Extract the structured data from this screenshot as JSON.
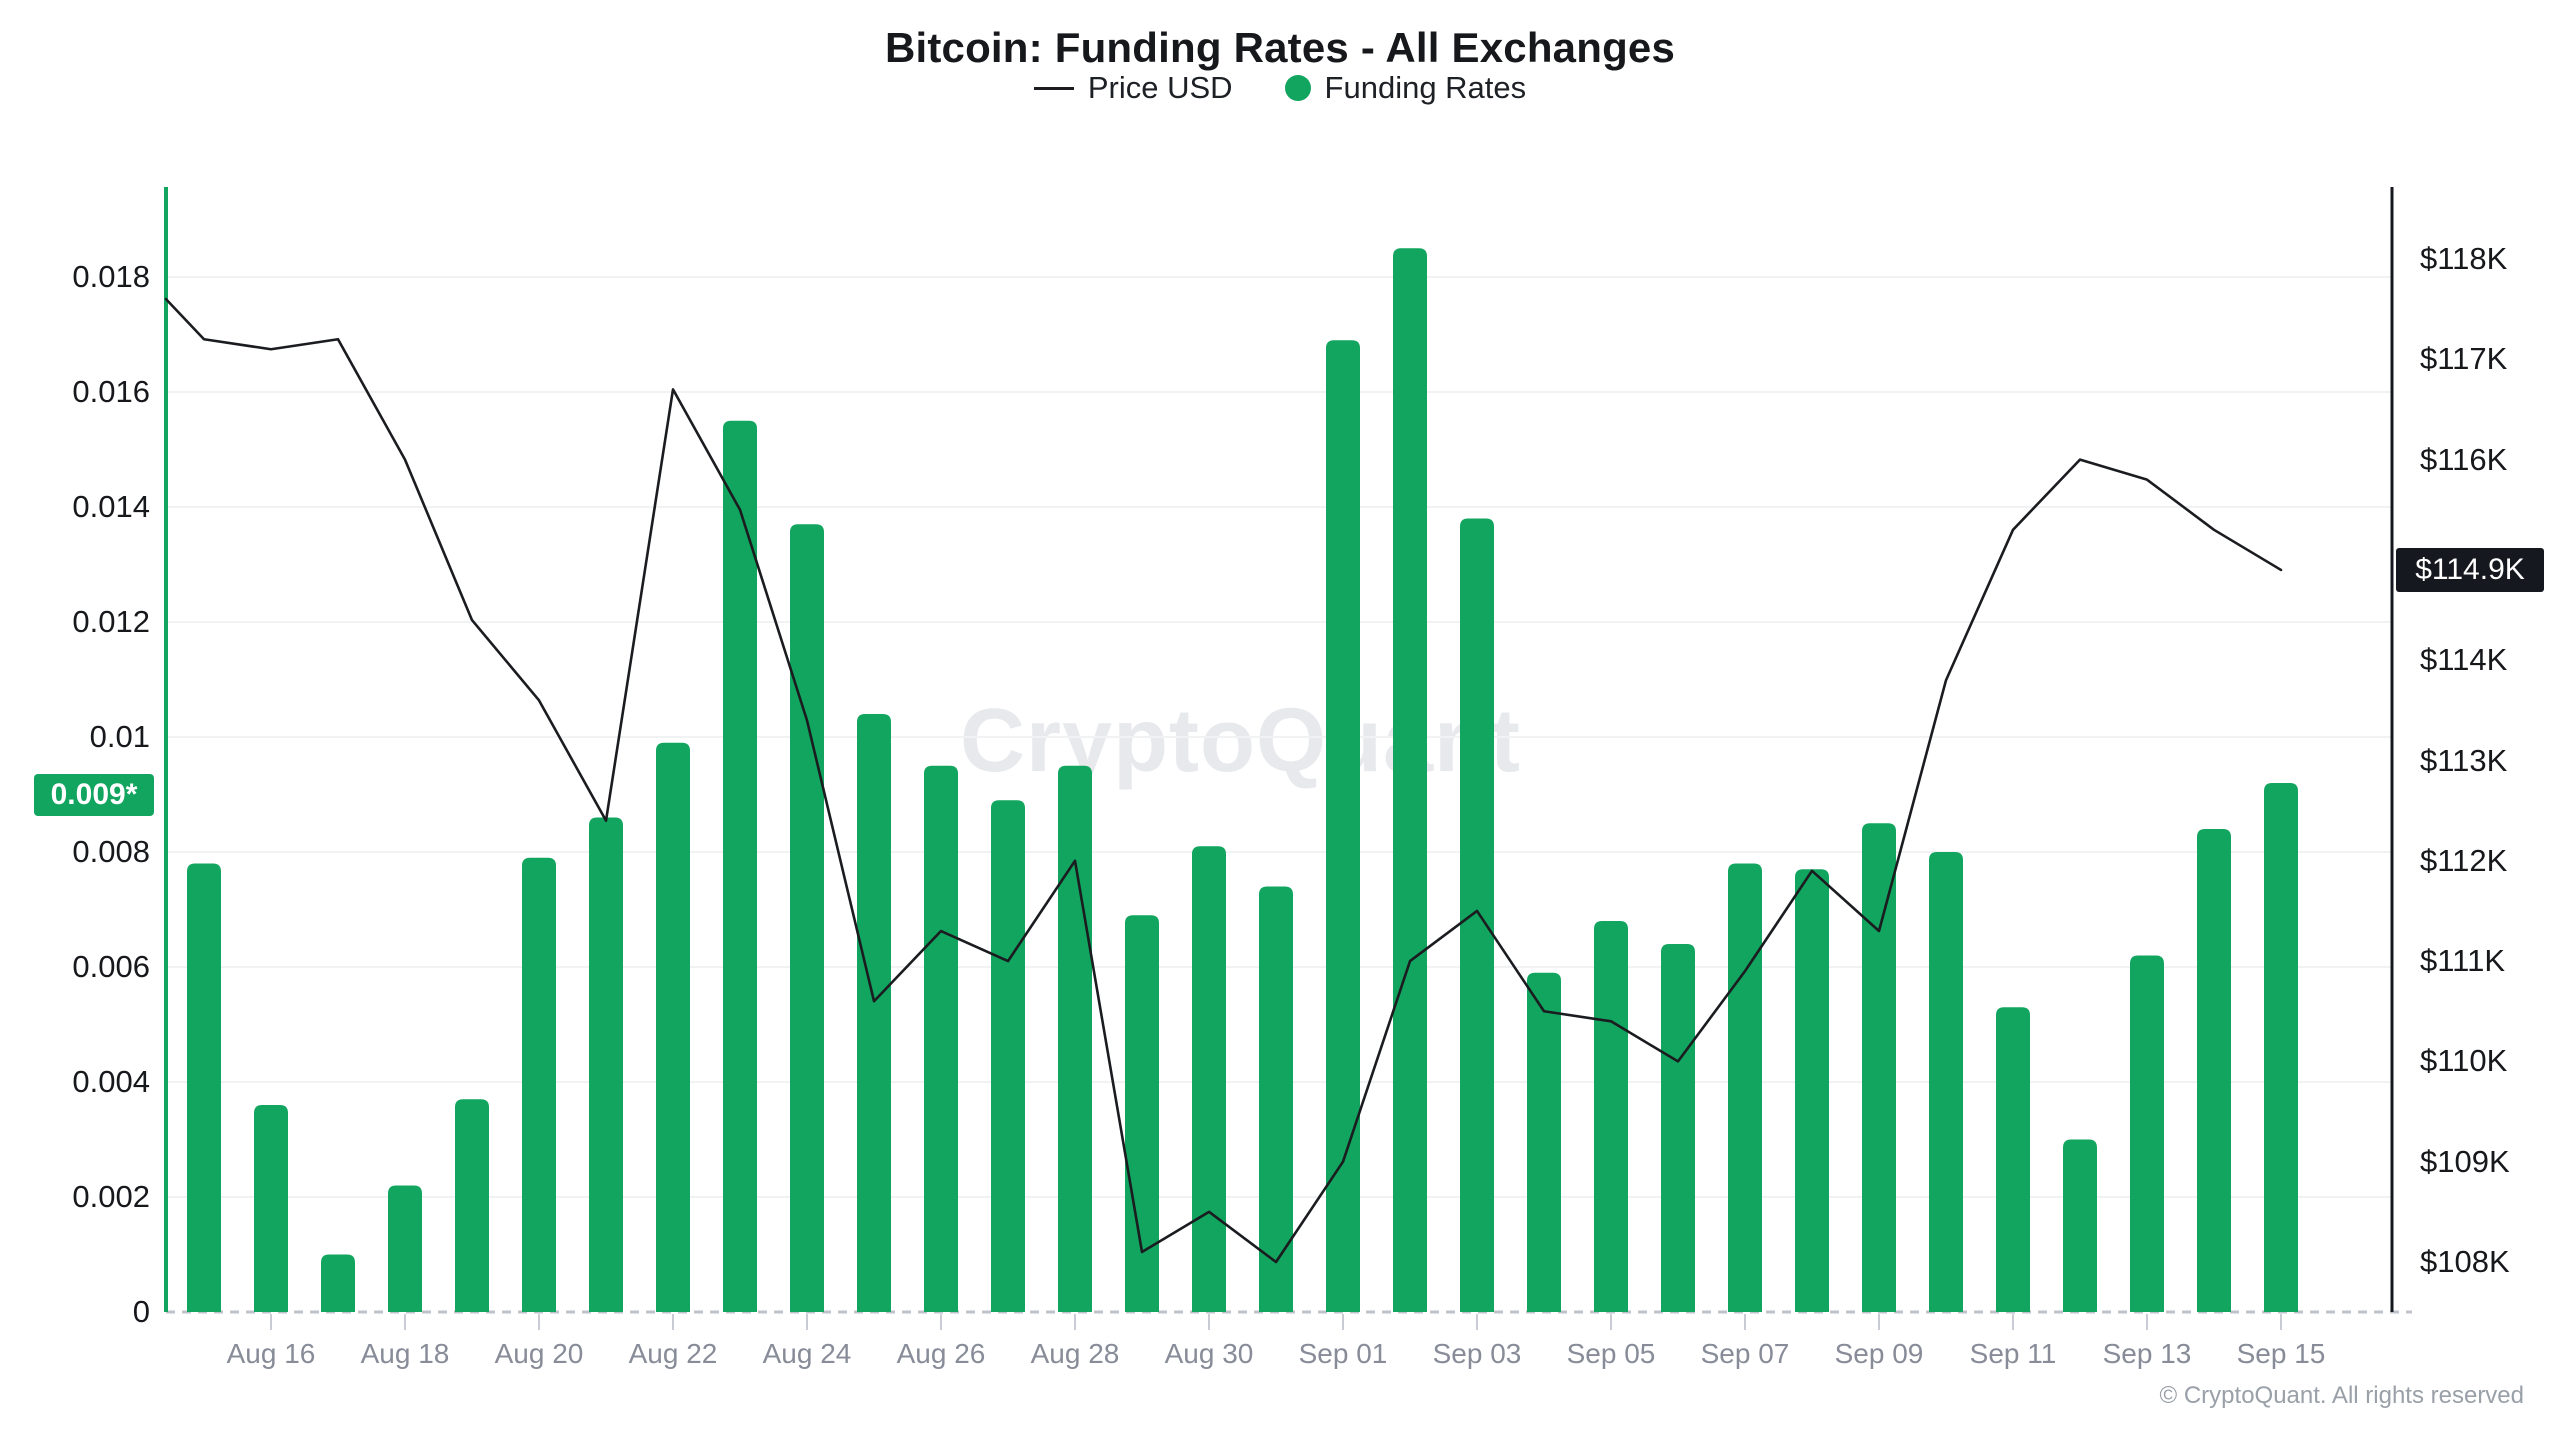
{
  "title": "Bitcoin: Funding Rates - All Exchanges",
  "legend": {
    "price_label": "Price USD",
    "funding_label": "Funding Rates"
  },
  "watermark": "CryptoQuant",
  "attribution": "© CryptoQuant. All rights reserved",
  "colors": {
    "green": "#11A55F",
    "price_line": "#1a1c20",
    "grid": "#f1f2f4",
    "baseline": "#bfc3cc",
    "tick": "#c9ccd4",
    "x_label": "#878c98",
    "axis_label": "#16181c",
    "watermark": "#e7e9ec",
    "left_badge_bg": "#11A55F",
    "right_badge_bg": "#15181e"
  },
  "left_axis": {
    "tick_labels": [
      "0",
      "0.002",
      "0.004",
      "0.006",
      "0.008",
      "0.01",
      "0.012",
      "0.014",
      "0.016",
      "0.018"
    ],
    "tick_values": [
      0,
      0.002,
      0.004,
      0.006,
      0.008,
      0.01,
      0.012,
      0.014,
      0.016,
      0.018
    ],
    "badge_label": "0.009*",
    "badge_value": 0.009
  },
  "right_axis": {
    "tick_labels": [
      "$108K",
      "$109K",
      "$110K",
      "$111K",
      "$112K",
      "$113K",
      "$114K",
      "$116K",
      "$117K",
      "$118K"
    ],
    "tick_values": [
      108,
      109,
      110,
      111,
      112,
      113,
      114,
      116,
      117,
      118
    ],
    "badge_label": "$114.9K",
    "badge_value": 114.9
  },
  "x_axis": {
    "tick_labels": [
      "Aug 16",
      "Aug 18",
      "Aug 20",
      "Aug 22",
      "Aug 24",
      "Aug 26",
      "Aug 28",
      "Aug 30",
      "Sep 01",
      "Sep 03",
      "Sep 05",
      "Sep 07",
      "Sep 09",
      "Sep 11",
      "Sep 13",
      "Sep 15"
    ]
  },
  "chart_data": {
    "type": "bar",
    "title": "Bitcoin: Funding Rates - All Exchanges",
    "categories": [
      "Aug 15",
      "Aug 16",
      "Aug 17",
      "Aug 18",
      "Aug 19",
      "Aug 20",
      "Aug 21",
      "Aug 22",
      "Aug 23",
      "Aug 24",
      "Aug 25",
      "Aug 26",
      "Aug 27",
      "Aug 28",
      "Aug 29",
      "Aug 30",
      "Aug 31",
      "Sep 01",
      "Sep 02",
      "Sep 03",
      "Sep 04",
      "Sep 05",
      "Sep 06",
      "Sep 07",
      "Sep 08",
      "Sep 09",
      "Sep 10",
      "Sep 11",
      "Sep 12",
      "Sep 13",
      "Sep 14",
      "Sep 15"
    ],
    "series": [
      {
        "name": "Funding Rates",
        "type": "bar",
        "axis": "left",
        "color": "#11A55F",
        "values": [
          0.0078,
          0.0036,
          0.001,
          0.0022,
          0.0037,
          0.0079,
          0.0086,
          0.0099,
          0.0155,
          0.0137,
          0.0104,
          0.0095,
          0.0089,
          0.0095,
          0.0069,
          0.0081,
          0.0074,
          0.0169,
          0.0185,
          0.0138,
          0.0059,
          0.0068,
          0.0064,
          0.0078,
          0.0077,
          0.0085,
          0.008,
          0.0053,
          0.003,
          0.0062,
          0.0084,
          0.0092
        ]
      },
      {
        "name": "Price USD",
        "type": "line",
        "axis": "right",
        "color": "#1a1c20",
        "unit": "USD thousands",
        "values": [
          117.2,
          117.1,
          117.2,
          116.0,
          114.4,
          113.6,
          112.4,
          116.7,
          115.5,
          113.4,
          110.6,
          111.3,
          111.0,
          112.0,
          108.1,
          108.5,
          108.0,
          109.0,
          111.0,
          111.5,
          110.5,
          110.4,
          110.0,
          110.9,
          111.9,
          111.3,
          113.8,
          115.3,
          116.0,
          115.8,
          115.3,
          114.9
        ]
      }
    ],
    "left_axis_range": [
      0,
      0.0194
    ],
    "right_axis_range_usd_thousands": [
      107.5,
      118.6
    ],
    "edge_start_price_usd_thousands": 117.6,
    "highlighted_funding_level": 0.009,
    "last_price_usd_thousands": 114.9,
    "grid": true,
    "legend_position": "top"
  }
}
